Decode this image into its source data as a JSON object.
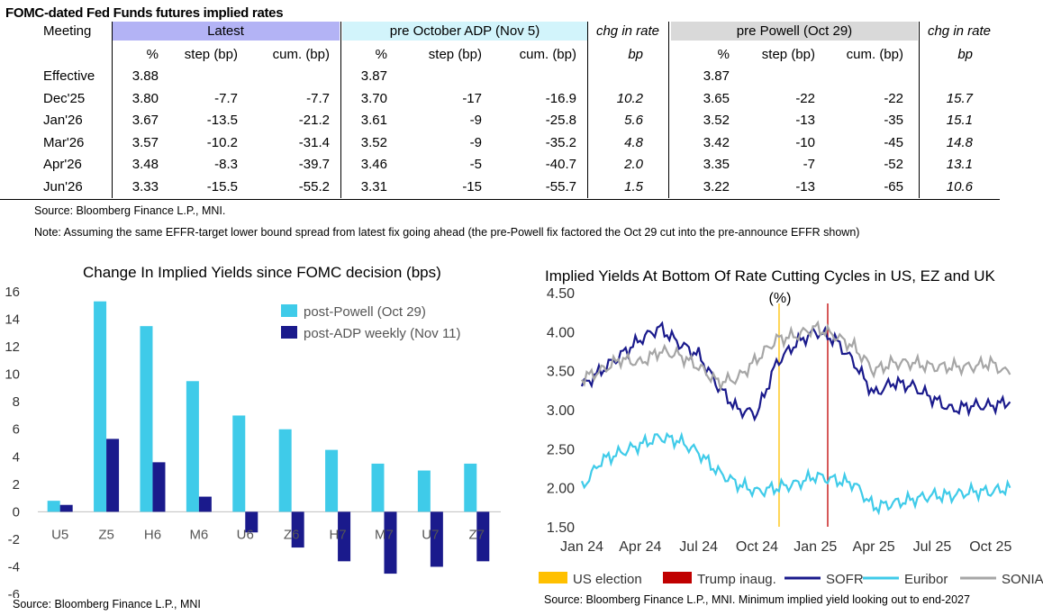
{
  "table": {
    "title": "FOMC-dated Fed Funds futures implied rates",
    "group_headers": {
      "meeting": "Meeting",
      "latest": "Latest",
      "pre_adp": "pre October ADP (Nov 5)",
      "chg1": "chg in rate",
      "pre_powell": "pre Powell (Oct 29)",
      "chg2": "chg in rate"
    },
    "sub_headers": [
      "%",
      "step (bp)",
      "cum. (bp)",
      "%",
      "step (bp)",
      "cum. (bp)",
      "bp",
      "%",
      "step (bp)",
      "cum. (bp)",
      "bp"
    ],
    "header_colors": {
      "latest": "#b3b3f5",
      "pre_adp": "#d2f4fb",
      "pre_powell": "#d9d9d9"
    },
    "rows": [
      {
        "meeting": "Effective",
        "cells": [
          "3.88",
          "",
          "",
          "3.87",
          "",
          "",
          "",
          "3.87",
          "",
          "",
          ""
        ]
      },
      {
        "meeting": "Dec'25",
        "cells": [
          "3.80",
          "-7.7",
          "-7.7",
          "3.70",
          "-17",
          "-16.9",
          "10.2",
          "3.65",
          "-22",
          "-22",
          "15.7"
        ]
      },
      {
        "meeting": "Jan'26",
        "cells": [
          "3.67",
          "-13.5",
          "-21.2",
          "3.61",
          "-9",
          "-25.8",
          "5.6",
          "3.52",
          "-13",
          "-35",
          "15.1"
        ]
      },
      {
        "meeting": "Mar'26",
        "cells": [
          "3.57",
          "-10.2",
          "-31.4",
          "3.52",
          "-9",
          "-35.2",
          "4.8",
          "3.42",
          "-10",
          "-45",
          "14.8"
        ]
      },
      {
        "meeting": "Apr'26",
        "cells": [
          "3.48",
          "-8.3",
          "-39.7",
          "3.46",
          "-5",
          "-40.7",
          "2.0",
          "3.35",
          "-7",
          "-52",
          "13.1"
        ]
      },
      {
        "meeting": "Jun'26",
        "cells": [
          "3.33",
          "-15.5",
          "-55.2",
          "3.31",
          "-15",
          "-55.7",
          "1.5",
          "3.22",
          "-13",
          "-65",
          "10.6"
        ]
      }
    ],
    "source": "Source: Bloomberg Finance L.P., MNI.",
    "note": "Note: Assuming the same  EFFR-target lower bound spread from latest fix going ahead (the pre-Powell fix factored the Oct 29 cut into the pre-announce EFFR shown)"
  },
  "chart_data": [
    {
      "type": "bar",
      "title": "Change In Implied Yields since FOMC decision (bps)",
      "categories": [
        "U5",
        "Z5",
        "H6",
        "M6",
        "U6",
        "Z6",
        "H7",
        "M7",
        "U7",
        "Z7"
      ],
      "series": [
        {
          "name": "post-Powell (Oct 29)",
          "color": "#3fcbe9",
          "values": [
            0.8,
            15.3,
            13.5,
            9.5,
            7.0,
            6.0,
            4.5,
            3.5,
            3.0,
            3.5
          ]
        },
        {
          "name": "post-ADP weekly (Nov 11)",
          "color": "#1a1a8c",
          "values": [
            0.5,
            5.3,
            3.6,
            1.1,
            -1.5,
            -2.6,
            -3.6,
            -4.5,
            -4.0,
            -3.6
          ]
        }
      ],
      "ylim": [
        -6,
        16
      ],
      "yticks": [
        "-6",
        "-4",
        "-2",
        "0",
        "2",
        "4",
        "6",
        "8",
        "10",
        "12",
        "14",
        "16"
      ],
      "legend": "top-right",
      "source": "Source: Bloomberg Finance L.P., MNI"
    },
    {
      "type": "line",
      "title": "Implied Yields At Bottom Of Rate Cutting Cycles in US, EZ and UK",
      "ylabel": "(%)",
      "ylim": [
        1.5,
        4.5
      ],
      "yticks": [
        "1.50",
        "2.00",
        "2.50",
        "3.00",
        "3.50",
        "4.00",
        "4.50"
      ],
      "xticks": [
        "Jan 24",
        "Apr 24",
        "Jul 24",
        "Oct 24",
        "Jan 25",
        "Apr 25",
        "Jul 25",
        "Oct 25"
      ],
      "x_months": [
        "2024-01",
        "2024-02",
        "2024-03",
        "2024-04",
        "2024-05",
        "2024-06",
        "2024-07",
        "2024-08",
        "2024-09",
        "2024-10",
        "2024-11",
        "2024-12",
        "2025-01",
        "2025-02",
        "2025-03",
        "2025-04",
        "2025-05",
        "2025-06",
        "2025-07",
        "2025-08",
        "2025-09",
        "2025-10",
        "2025-11"
      ],
      "series": [
        {
          "name": "SOFR",
          "color": "#1a1a8c",
          "values": [
            3.3,
            3.5,
            3.7,
            3.9,
            4.05,
            3.85,
            3.7,
            3.3,
            3.0,
            2.95,
            3.6,
            3.85,
            4.0,
            3.9,
            3.6,
            3.2,
            3.35,
            3.3,
            3.15,
            3.0,
            3.05,
            3.05,
            3.1
          ]
        },
        {
          "name": "Euribor",
          "color": "#3fcbe9",
          "values": [
            2.0,
            2.35,
            2.45,
            2.55,
            2.65,
            2.6,
            2.45,
            2.2,
            2.05,
            1.95,
            2.0,
            2.05,
            2.15,
            2.1,
            2.05,
            1.75,
            1.8,
            1.85,
            1.9,
            1.9,
            1.95,
            1.95,
            2.0
          ]
        },
        {
          "name": "SONIA",
          "color": "#a6a6a6",
          "values": [
            3.4,
            3.5,
            3.65,
            3.6,
            3.75,
            3.7,
            3.55,
            3.35,
            3.4,
            3.65,
            3.9,
            3.95,
            4.05,
            3.95,
            3.8,
            3.5,
            3.6,
            3.6,
            3.55,
            3.55,
            3.55,
            3.6,
            3.45
          ]
        }
      ],
      "events": [
        {
          "name": "US election",
          "date": "2024-11-05",
          "color": "#ffc000"
        },
        {
          "name": "Trump inaug.",
          "date": "2025-01-20",
          "color": "#c00000"
        }
      ],
      "legend": "bottom",
      "source": "Source: Bloomberg Finance L.P., MNI. Minimum implied yield looking out to end-2027"
    }
  ]
}
